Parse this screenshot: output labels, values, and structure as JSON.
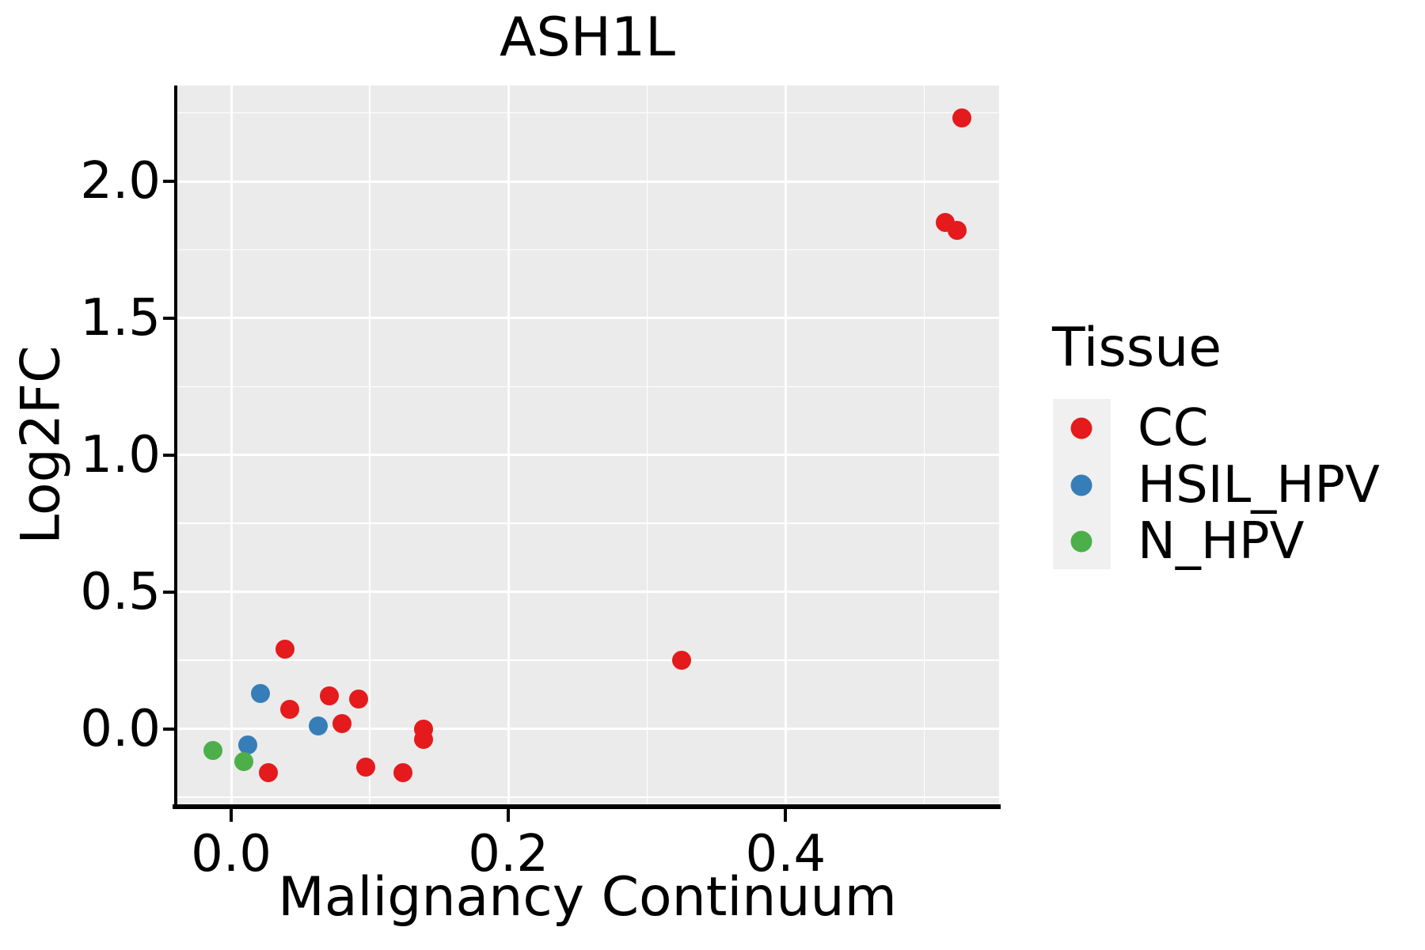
{
  "chart_data": {
    "type": "scatter",
    "title": "ASH1L",
    "xlabel": "Malignancy Continuum",
    "ylabel": "Log2FC",
    "legend": {
      "title": "Tissue",
      "position": "right"
    },
    "xlim": [
      -0.04,
      0.554
    ],
    "ylim": [
      -0.276,
      2.35
    ],
    "x_ticks": [
      0.0,
      0.2,
      0.4
    ],
    "x_tick_labels": [
      "0.0",
      "0.2",
      "0.4"
    ],
    "y_ticks": [
      0.0,
      0.5,
      1.0,
      1.5,
      2.0
    ],
    "y_tick_labels": [
      "0.0",
      "0.5",
      "1.0",
      "1.5",
      "2.0"
    ],
    "x_minor_gridlines": [
      0.1,
      0.3,
      0.5
    ],
    "y_minor_gridlines": [
      -0.25,
      0.25,
      0.75,
      1.25,
      1.75,
      2.25
    ],
    "grid": "major and minor, white lines on grey panel",
    "panel_bg": "#EBEBEB",
    "grid_color": "#FFFFFF",
    "axis_color": "#000000",
    "legend_key_bg": "#F0F0F0",
    "series": [
      {
        "name": "CC",
        "color": "#E41A1C",
        "points": [
          [
            0.527,
            2.23
          ],
          [
            0.515,
            1.85
          ],
          [
            0.524,
            1.82
          ],
          [
            0.325,
            0.25
          ],
          [
            0.039,
            0.29
          ],
          [
            0.042,
            0.07
          ],
          [
            0.071,
            0.12
          ],
          [
            0.092,
            0.11
          ],
          [
            0.08,
            0.02
          ],
          [
            0.139,
            0.0
          ],
          [
            0.139,
            -0.04
          ],
          [
            0.027,
            -0.16
          ],
          [
            0.097,
            -0.14
          ],
          [
            0.124,
            -0.16
          ]
        ]
      },
      {
        "name": "HSIL_HPV",
        "color": "#377EB8",
        "points": [
          [
            0.021,
            0.13
          ],
          [
            0.063,
            0.01
          ],
          [
            0.012,
            -0.06
          ]
        ]
      },
      {
        "name": "N_HPV",
        "color": "#4DAF4A",
        "points": [
          [
            -0.013,
            -0.08
          ],
          [
            0.009,
            -0.12
          ]
        ]
      }
    ]
  }
}
